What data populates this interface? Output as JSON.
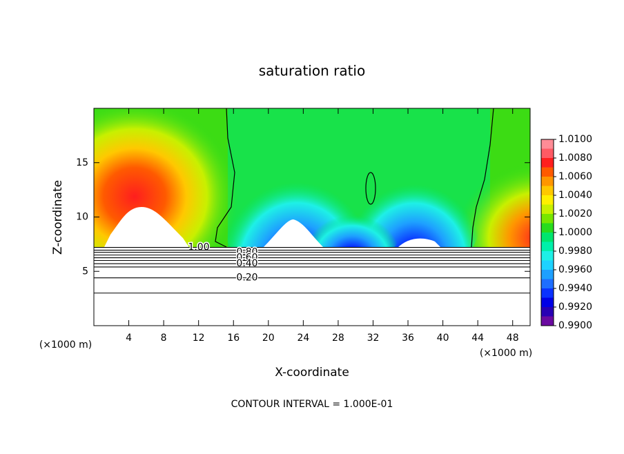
{
  "chart_data": {
    "type": "contour",
    "title": "saturation ratio",
    "x_label": "X-coordinate",
    "y_label": "Z-coordinate",
    "x_unit": "(×1000 m)",
    "y_unit": "(×1000 m)",
    "footer": "CONTOUR INTERVAL = 1.000E-01",
    "xlim": [
      0,
      50
    ],
    "ylim": [
      0,
      20
    ],
    "xticks": [
      4,
      8,
      12,
      16,
      20,
      24,
      28,
      32,
      36,
      40,
      44,
      48
    ],
    "yticks": [
      5,
      10,
      15
    ],
    "contours": {
      "levels": [
        1.0,
        0.9,
        0.8,
        0.7,
        0.6,
        0.5,
        0.4,
        0.3,
        0.2,
        0.1
      ],
      "z": [
        7.2,
        6.95,
        6.75,
        6.5,
        6.25,
        6.0,
        5.7,
        5.4,
        4.4,
        3.0
      ],
      "value_labels": [
        "1.00",
        null,
        "0.80",
        null,
        "0.60",
        null,
        "0.40",
        null,
        "0.20",
        null
      ]
    },
    "colorbar": {
      "lim": [
        0.99,
        1.01
      ],
      "ticks": [
        {
          "value": 1.01,
          "label": "1.0100"
        },
        {
          "value": 1.008,
          "label": "1.0080"
        },
        {
          "value": 1.006,
          "label": "1.0060"
        },
        {
          "value": 1.004,
          "label": "1.0040"
        },
        {
          "value": 1.002,
          "label": "1.0020"
        },
        {
          "value": 1.0,
          "label": "1.0000"
        },
        {
          "value": 0.998,
          "label": "0.9980"
        },
        {
          "value": 0.996,
          "label": "0.9960"
        },
        {
          "value": 0.994,
          "label": "0.9940"
        },
        {
          "value": 0.992,
          "label": "0.9920"
        },
        {
          "value": 0.99,
          "label": "0.9900"
        }
      ],
      "colors": [
        "#6a0aa0",
        "#2800b4",
        "#0000e6",
        "#0a32ff",
        "#1e6eff",
        "#1ea0ff",
        "#1ed2ff",
        "#1ef0e6",
        "#00f0aa",
        "#00e66e",
        "#28dc1e",
        "#78e600",
        "#c8f000",
        "#fff000",
        "#ffc800",
        "#ff9600",
        "#ff5a00",
        "#ff1e1e",
        "#ff5a64",
        "#ff8c96"
      ]
    }
  }
}
